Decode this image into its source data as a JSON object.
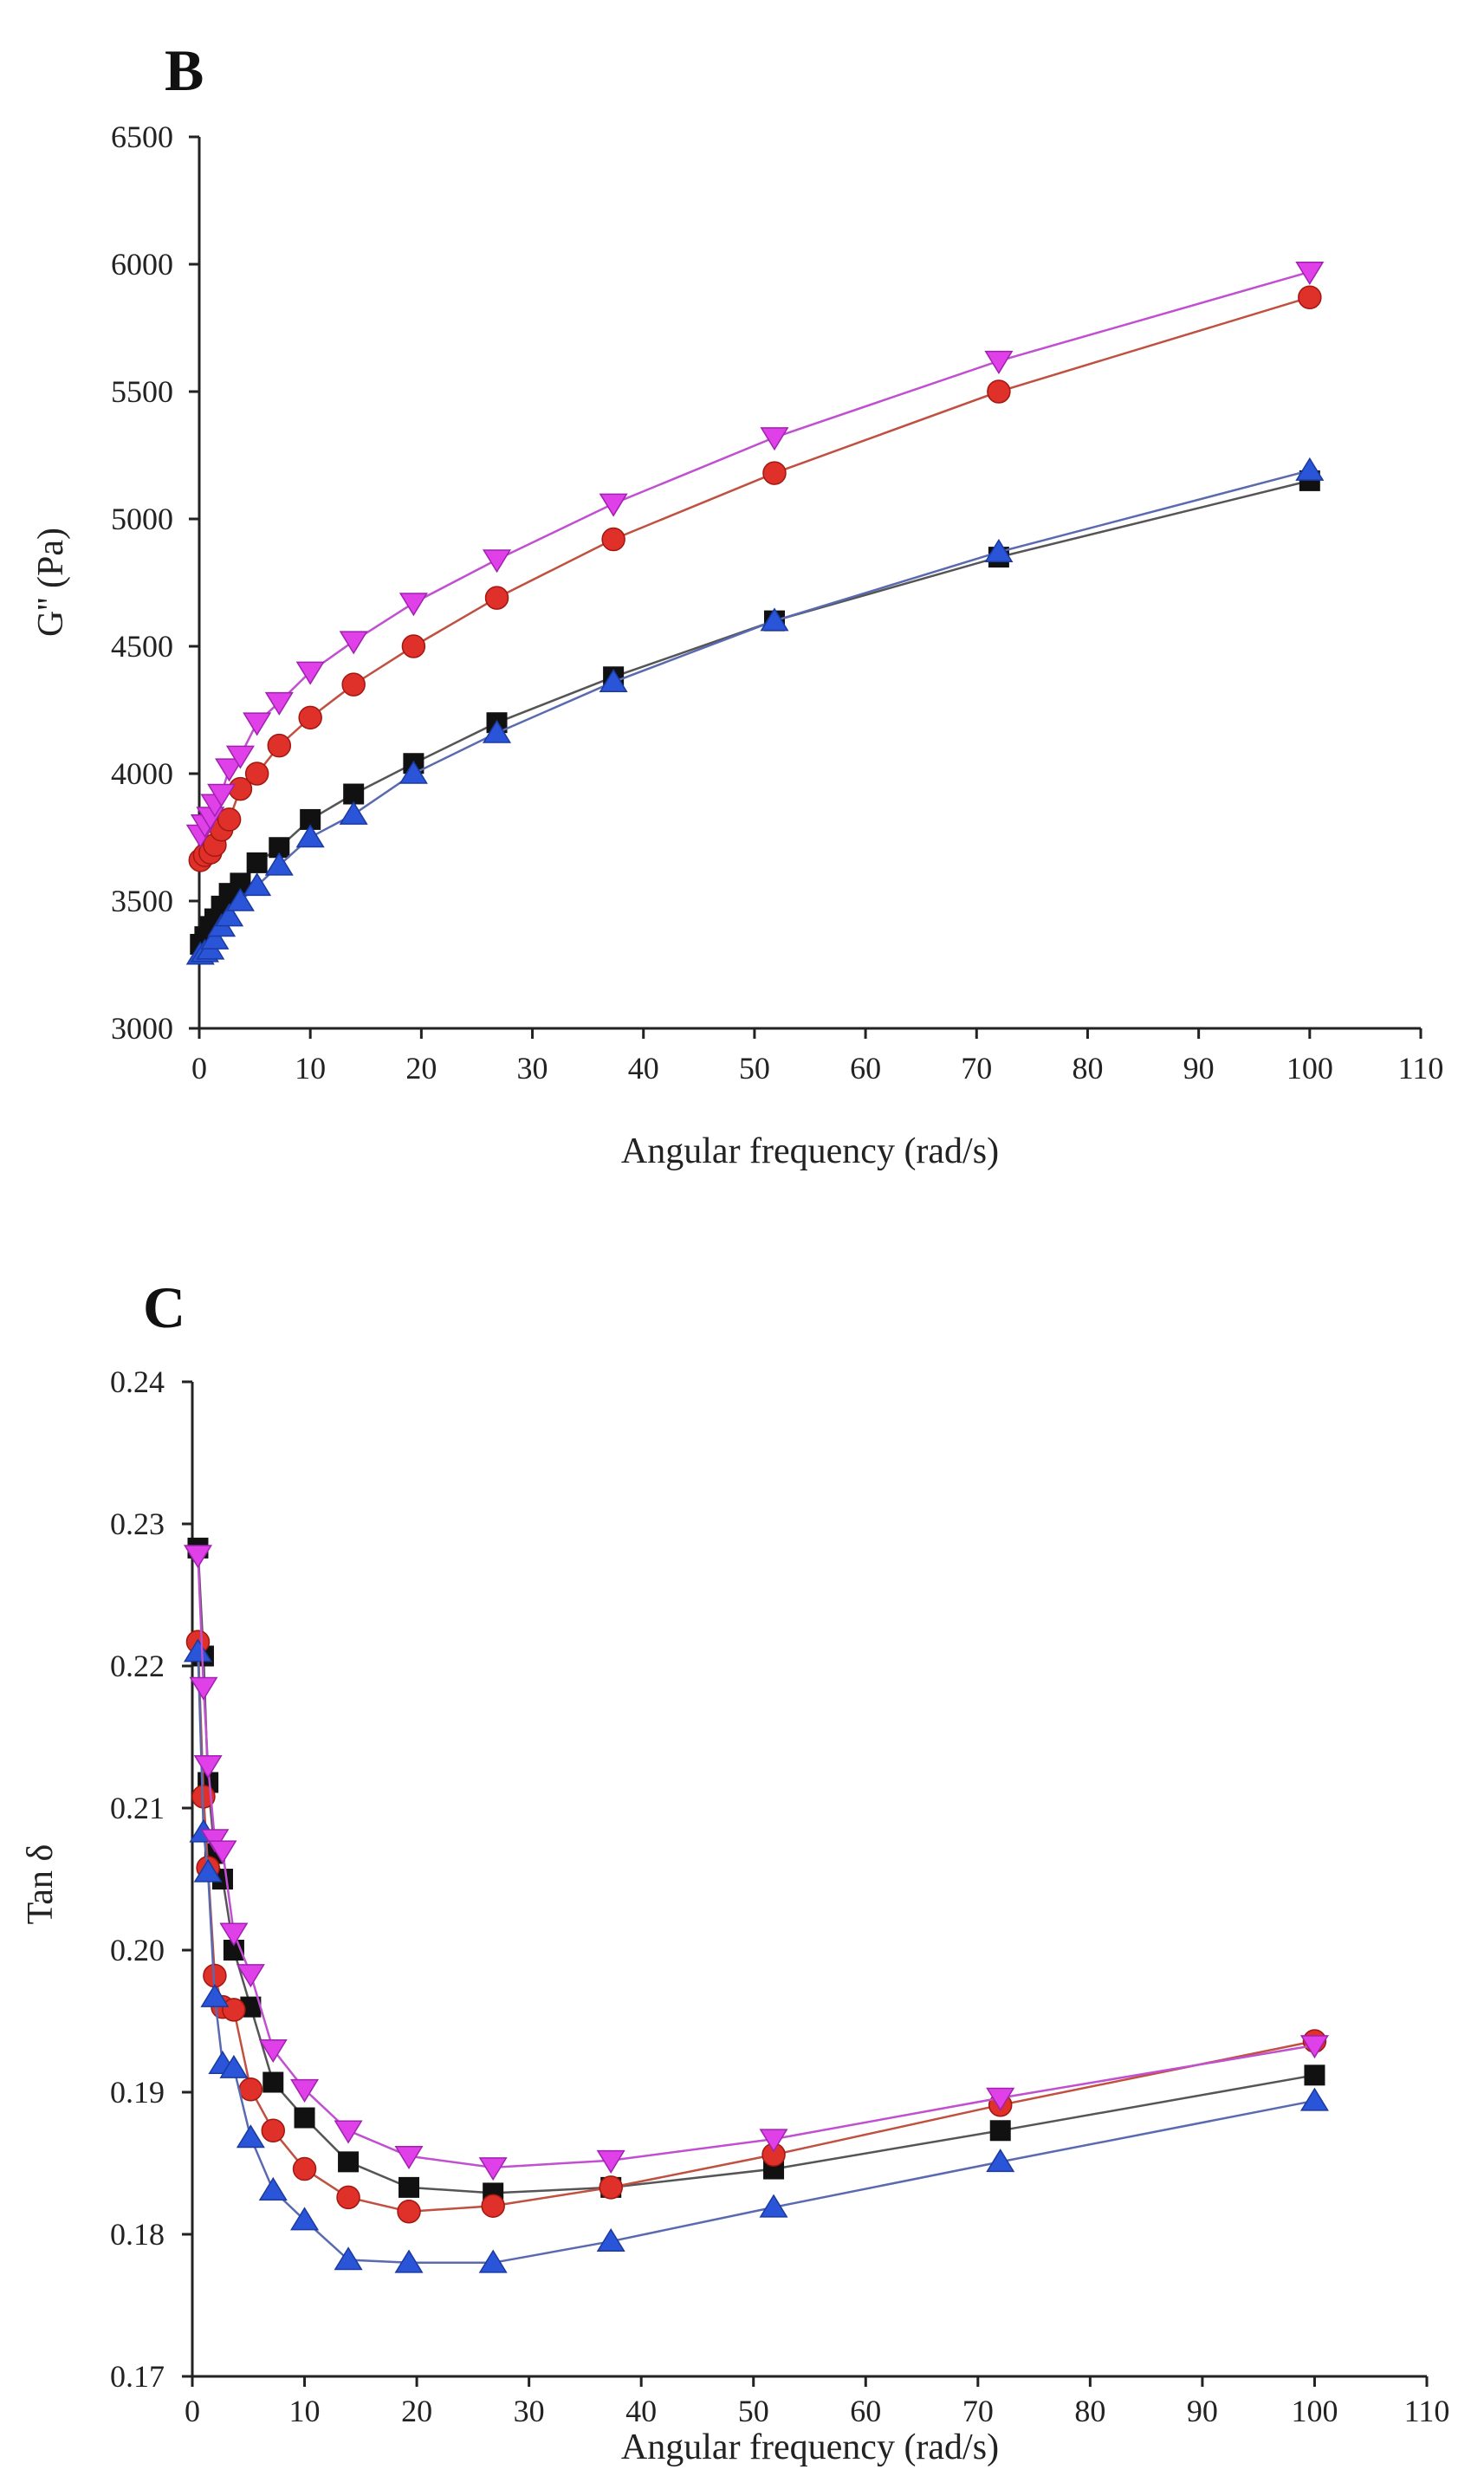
{
  "chart_data": [
    {
      "panel": "B",
      "type": "line",
      "xlabel": "Angular frequency (rad/s)",
      "ylabel": "G'' (Pa)",
      "xlim": [
        0,
        110
      ],
      "ylim": [
        3000,
        6500
      ],
      "xticks": [
        0,
        10,
        20,
        30,
        40,
        50,
        60,
        70,
        80,
        90,
        100,
        110
      ],
      "yticks": [
        3000,
        3500,
        4000,
        4500,
        5000,
        5500,
        6000,
        6500
      ],
      "x": [
        0.1,
        0.5,
        1,
        1.4,
        2,
        2.7,
        3.7,
        5.2,
        7.2,
        10,
        13.9,
        19.3,
        26.8,
        37.3,
        51.8,
        72,
        100
      ],
      "series": [
        {
          "name": "series-black-square",
          "marker": "square",
          "color": "#111111",
          "line_color": "#555555",
          "values": [
            3330,
            3360,
            3400,
            3430,
            3480,
            3530,
            3570,
            3650,
            3710,
            3820,
            3920,
            4040,
            4200,
            4380,
            4600,
            4850,
            5150
          ]
        },
        {
          "name": "series-red-circle",
          "marker": "circle",
          "color": "#e0302a",
          "line_color": "#c05040",
          "values": [
            3660,
            3680,
            3690,
            3720,
            3780,
            3820,
            3940,
            4000,
            4110,
            4220,
            4350,
            4500,
            4690,
            4920,
            5180,
            5500,
            5870
          ]
        },
        {
          "name": "series-blue-triangle",
          "marker": "triangle-up",
          "color": "#2a55d8",
          "line_color": "#5a6ab0",
          "values": [
            3290,
            3300,
            3310,
            3350,
            3400,
            3440,
            3500,
            3560,
            3640,
            3750,
            3840,
            4000,
            4160,
            4360,
            4600,
            4870,
            5190
          ]
        },
        {
          "name": "series-magenta-triangle-down",
          "marker": "triangle-down",
          "color": "#e040e8",
          "line_color": "#c050d0",
          "values": [
            3760,
            3800,
            3830,
            3880,
            3920,
            4020,
            4070,
            4200,
            4280,
            4400,
            4520,
            4670,
            4840,
            5060,
            5320,
            5620,
            5970
          ]
        }
      ]
    },
    {
      "panel": "C",
      "type": "line",
      "xlabel": "Angular frequency (rad/s)",
      "ylabel": "Tan δ",
      "xlim": [
        0,
        110
      ],
      "ylim": [
        0.17,
        0.24
      ],
      "xticks": [
        0,
        10,
        20,
        30,
        40,
        50,
        60,
        70,
        80,
        90,
        100,
        110
      ],
      "yticks": [
        "0.17",
        "0.18",
        "0.19",
        "0.20",
        "0.21",
        "0.22",
        "0.23",
        "0.24"
      ],
      "x": [
        0.5,
        1,
        1.4,
        2,
        2.7,
        3.7,
        5.2,
        7.2,
        10,
        13.9,
        19.3,
        26.8,
        37.3,
        51.8,
        72,
        100
      ],
      "series": [
        {
          "name": "series-black-square",
          "marker": "square",
          "color": "#111111",
          "line_color": "#555555",
          "values": [
            0.2283,
            0.2207,
            0.2118,
            0.2068,
            0.205,
            0.2,
            0.196,
            0.1907,
            0.1882,
            0.1851,
            0.1833,
            0.1829,
            0.1833,
            0.1846,
            0.1873,
            0.1912
          ]
        },
        {
          "name": "series-red-circle",
          "marker": "circle",
          "color": "#e0302a",
          "line_color": "#c05040",
          "values": [
            0.2217,
            0.2108,
            0.2058,
            0.1982,
            0.196,
            0.1958,
            0.1902,
            0.1873,
            0.1846,
            0.1826,
            0.1816,
            0.182,
            0.1833,
            0.1856,
            0.1891,
            0.1936
          ]
        },
        {
          "name": "series-blue-triangle",
          "marker": "triangle-up",
          "color": "#2a55d8",
          "line_color": "#5a6ab0",
          "values": [
            0.221,
            0.2083,
            0.2055,
            0.1967,
            0.192,
            0.1917,
            0.1868,
            0.1831,
            0.181,
            0.1782,
            0.178,
            0.178,
            0.1795,
            0.1819,
            0.1851,
            0.1894
          ]
        },
        {
          "name": "series-magenta-triangle-down",
          "marker": "triangle-down",
          "color": "#e040e8",
          "line_color": "#c050d0",
          "values": [
            0.2278,
            0.2185,
            0.213,
            0.2078,
            0.207,
            0.2012,
            0.1983,
            0.193,
            0.1902,
            0.1873,
            0.1855,
            0.1847,
            0.1852,
            0.1867,
            0.1896,
            0.1933
          ]
        }
      ]
    }
  ]
}
